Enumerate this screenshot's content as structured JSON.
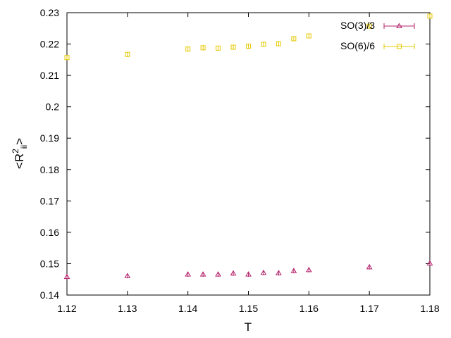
{
  "chart_data": {
    "type": "scatter",
    "title": "",
    "xlabel": "T",
    "ylabel": {
      "base": "<R",
      "sup": "2",
      "sub": "ii",
      "close": ">"
    },
    "xlim": [
      1.12,
      1.18
    ],
    "ylim": [
      0.14,
      0.23
    ],
    "xticks": [
      1.12,
      1.13,
      1.14,
      1.15,
      1.16,
      1.17,
      1.18
    ],
    "yticks": [
      0.14,
      0.15,
      0.16,
      0.17,
      0.18,
      0.19,
      0.2,
      0.21,
      0.22,
      0.23
    ],
    "grid": false,
    "legend_position": "top-right",
    "series": [
      {
        "name": "SO(3)/3",
        "marker": "triangle",
        "color": "#b5226b",
        "x": [
          1.12,
          1.13,
          1.14,
          1.1425,
          1.145,
          1.1475,
          1.15,
          1.1525,
          1.155,
          1.1575,
          1.16,
          1.17,
          1.18
        ],
        "y": [
          0.1458,
          0.1461,
          0.1466,
          0.1466,
          0.1466,
          0.1469,
          0.1466,
          0.1471,
          0.147,
          0.1477,
          0.148,
          0.1489,
          0.1501
        ]
      },
      {
        "name": "SO(6)/6",
        "marker": "square",
        "color": "#e6c800",
        "x": [
          1.12,
          1.13,
          1.14,
          1.1425,
          1.145,
          1.1475,
          1.15,
          1.1525,
          1.155,
          1.1575,
          1.16,
          1.17,
          1.18
        ],
        "y": [
          0.2157,
          0.2167,
          0.2184,
          0.2188,
          0.2187,
          0.219,
          0.2193,
          0.2199,
          0.2201,
          0.2217,
          0.2226,
          0.2257,
          0.2289
        ]
      }
    ]
  }
}
